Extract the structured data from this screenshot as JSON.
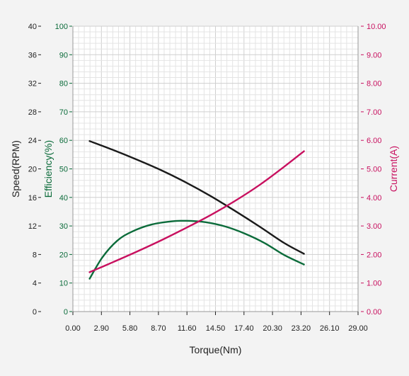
{
  "colors": {
    "background": "#f3f3f3",
    "plot_background": "#ffffff",
    "grid_minor": "#e4e4e4",
    "grid_major": "#cfcfcf",
    "speed": "#1a1a1a",
    "efficiency": "#0b6b3a",
    "current": "#c8105f",
    "axis_text": "#222222"
  },
  "chart_data": {
    "type": "line",
    "title": "",
    "xlabel": "Torque(Nm)",
    "x_ticks": [
      "0.00",
      "2.90",
      "5.80",
      "8.70",
      "11.60",
      "14.50",
      "17.40",
      "20.30",
      "23.20",
      "26.10",
      "29.00"
    ],
    "xlim": [
      0,
      29
    ],
    "y_axes": [
      {
        "id": "speed",
        "label": "Speed(RPM)",
        "position": "left-outer",
        "ylim": [
          0,
          40
        ],
        "ticks": [
          "0",
          "4",
          "8",
          "12",
          "16",
          "20",
          "24",
          "28",
          "32",
          "36",
          "40"
        ]
      },
      {
        "id": "efficiency",
        "label": "Efficiency(%)",
        "position": "left-inner",
        "ylim": [
          0,
          100
        ],
        "ticks": [
          "0",
          "10",
          "20",
          "30",
          "40",
          "50",
          "60",
          "70",
          "80",
          "90",
          "100"
        ]
      },
      {
        "id": "current",
        "label": "Current(A)",
        "position": "right",
        "ylim": [
          0,
          10
        ],
        "ticks": [
          "0.00",
          "1.00",
          "2.00",
          "3.00",
          "4.00",
          "5.00",
          "6.00",
          "7.00",
          "8.00",
          "9.00",
          "10.00"
        ]
      }
    ],
    "grid": true,
    "series": [
      {
        "id": "speed",
        "axis": "speed",
        "color": "#1a1a1a",
        "x": [
          1.7,
          4.0,
          6.5,
          9.0,
          11.5,
          14.0,
          16.5,
          19.0,
          21.5,
          23.5
        ],
        "values": [
          23.9,
          22.7,
          21.3,
          19.8,
          18.1,
          16.2,
          14.1,
          11.9,
          9.6,
          8.1
        ]
      },
      {
        "id": "efficiency",
        "axis": "efficiency",
        "color": "#0b6b3a",
        "x": [
          1.7,
          3.0,
          4.5,
          6.0,
          8.0,
          10.0,
          11.6,
          13.5,
          15.5,
          17.5,
          19.5,
          21.5,
          23.5
        ],
        "values": [
          11.5,
          19.0,
          24.8,
          28.0,
          30.5,
          31.6,
          31.8,
          31.3,
          29.8,
          27.3,
          24.0,
          19.8,
          16.5
        ]
      },
      {
        "id": "current",
        "axis": "current",
        "color": "#c8105f",
        "x": [
          1.7,
          4.0,
          6.5,
          9.0,
          11.5,
          14.0,
          16.5,
          19.0,
          21.5,
          23.5
        ],
        "values": [
          1.38,
          1.72,
          2.1,
          2.5,
          2.93,
          3.38,
          3.88,
          4.44,
          5.08,
          5.62
        ]
      }
    ]
  }
}
